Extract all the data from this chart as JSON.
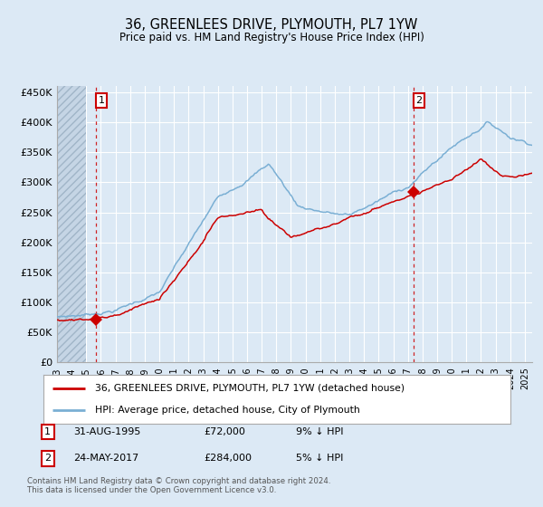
{
  "title": "36, GREENLEES DRIVE, PLYMOUTH, PL7 1YW",
  "subtitle": "Price paid vs. HM Land Registry's House Price Index (HPI)",
  "background_color": "#dce9f5",
  "plot_bg_color": "#dce9f5",
  "grid_color": "#ffffff",
  "red_line_color": "#cc0000",
  "blue_line_color": "#7aafd4",
  "vline_color": "#cc0000",
  "marker_color": "#cc0000",
  "transaction1": {
    "date_num": 1995.66,
    "price": 72000,
    "label": "1",
    "date_str": "31-AUG-1995",
    "pct": "9% ↓ HPI"
  },
  "transaction2": {
    "date_num": 2017.39,
    "price": 284000,
    "label": "2",
    "date_str": "24-MAY-2017",
    "pct": "5% ↓ HPI"
  },
  "xmin": 1993.0,
  "xmax": 2025.5,
  "ymin": 0,
  "ymax": 460000,
  "yticks": [
    0,
    50000,
    100000,
    150000,
    200000,
    250000,
    300000,
    350000,
    400000,
    450000
  ],
  "ytick_labels": [
    "£0",
    "£50K",
    "£100K",
    "£150K",
    "£200K",
    "£250K",
    "£300K",
    "£350K",
    "£400K",
    "£450K"
  ],
  "legend_entry1": "36, GREENLEES DRIVE, PLYMOUTH, PL7 1YW (detached house)",
  "legend_entry2": "HPI: Average price, detached house, City of Plymouth",
  "footer": "Contains HM Land Registry data © Crown copyright and database right 2024.\nThis data is licensed under the Open Government Licence v3.0.",
  "hatch_end": 1995.0
}
